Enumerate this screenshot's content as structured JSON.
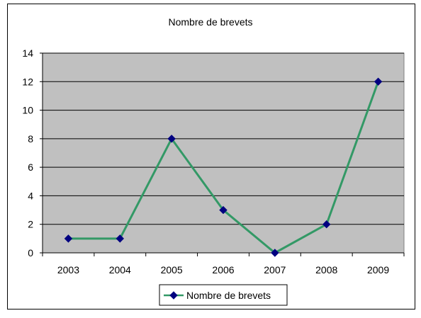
{
  "chart_data": {
    "type": "line",
    "title": "Nombre de brevets",
    "categories": [
      "2003",
      "2004",
      "2005",
      "2006",
      "2007",
      "2008",
      "2009"
    ],
    "series": [
      {
        "name": "Nombre de brevets",
        "values": [
          1,
          1,
          8,
          3,
          0,
          2,
          12
        ],
        "line_color": "#339966",
        "marker_color": "#000080"
      }
    ],
    "ylim": [
      0,
      14
    ],
    "yticks": [
      0,
      2,
      4,
      6,
      8,
      10,
      12,
      14
    ],
    "grid": true,
    "legend_position": "bottom",
    "plot_background": "#c0c0c0"
  }
}
